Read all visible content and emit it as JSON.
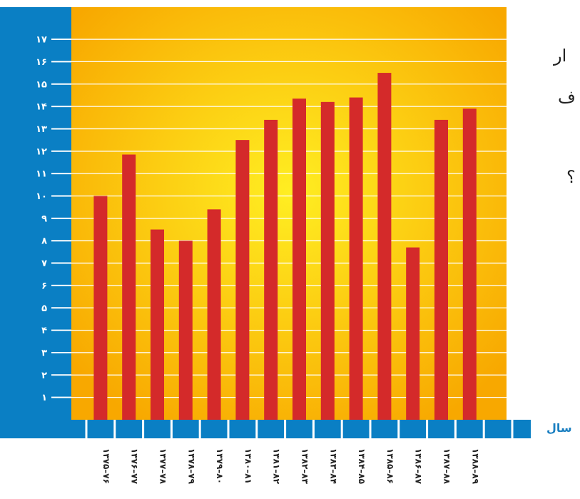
{
  "chart_data": {
    "type": "bar",
    "categories": [
      "۱۳۷۵–۷۶",
      "۱۳۷۶–۷۷",
      "۱۳۷۷–۷۸",
      "۱۳۷۸–۷۹",
      "۱۳۷۹–۸۰",
      "۱۳۸۰–۸۱",
      "۱۳۸۱–۸۲",
      "۱۳۸۲–۸۳",
      "۱۳۸۳–۸۴",
      "۱۳۸۴–۸۵",
      "۱۳۸۵–۸۶",
      "۱۳۸۶–۸۷",
      "۱۳۸۷–۸۸",
      "۱۳۸۸–۸۹"
    ],
    "values": [
      10.0,
      11.85,
      8.5,
      8.0,
      9.4,
      12.5,
      13.4,
      14.35,
      14.2,
      14.4,
      15.5,
      7.7,
      13.4,
      13.9
    ],
    "yticks": [
      "۱",
      "۲",
      "۳",
      "۴",
      "۵",
      "۶",
      "۷",
      "۸",
      "۹",
      "۱۰",
      "۱۱",
      "۱۲",
      "۱۳",
      "۱۴",
      "۱۵",
      "۱۶",
      "۱۷"
    ],
    "ylim": [
      0,
      17.5
    ],
    "xlabel": "سال",
    "ylabel": "",
    "title": "",
    "grid": true,
    "colors": {
      "bar": "#d42a2a",
      "axis_band": "#0a7fc4",
      "plot_bg_center": "#ffee22",
      "plot_bg_edge": "#f8a800",
      "grid": "#ffffff"
    }
  },
  "side_text": [
    "ار",
    "ف",
    "؟"
  ]
}
